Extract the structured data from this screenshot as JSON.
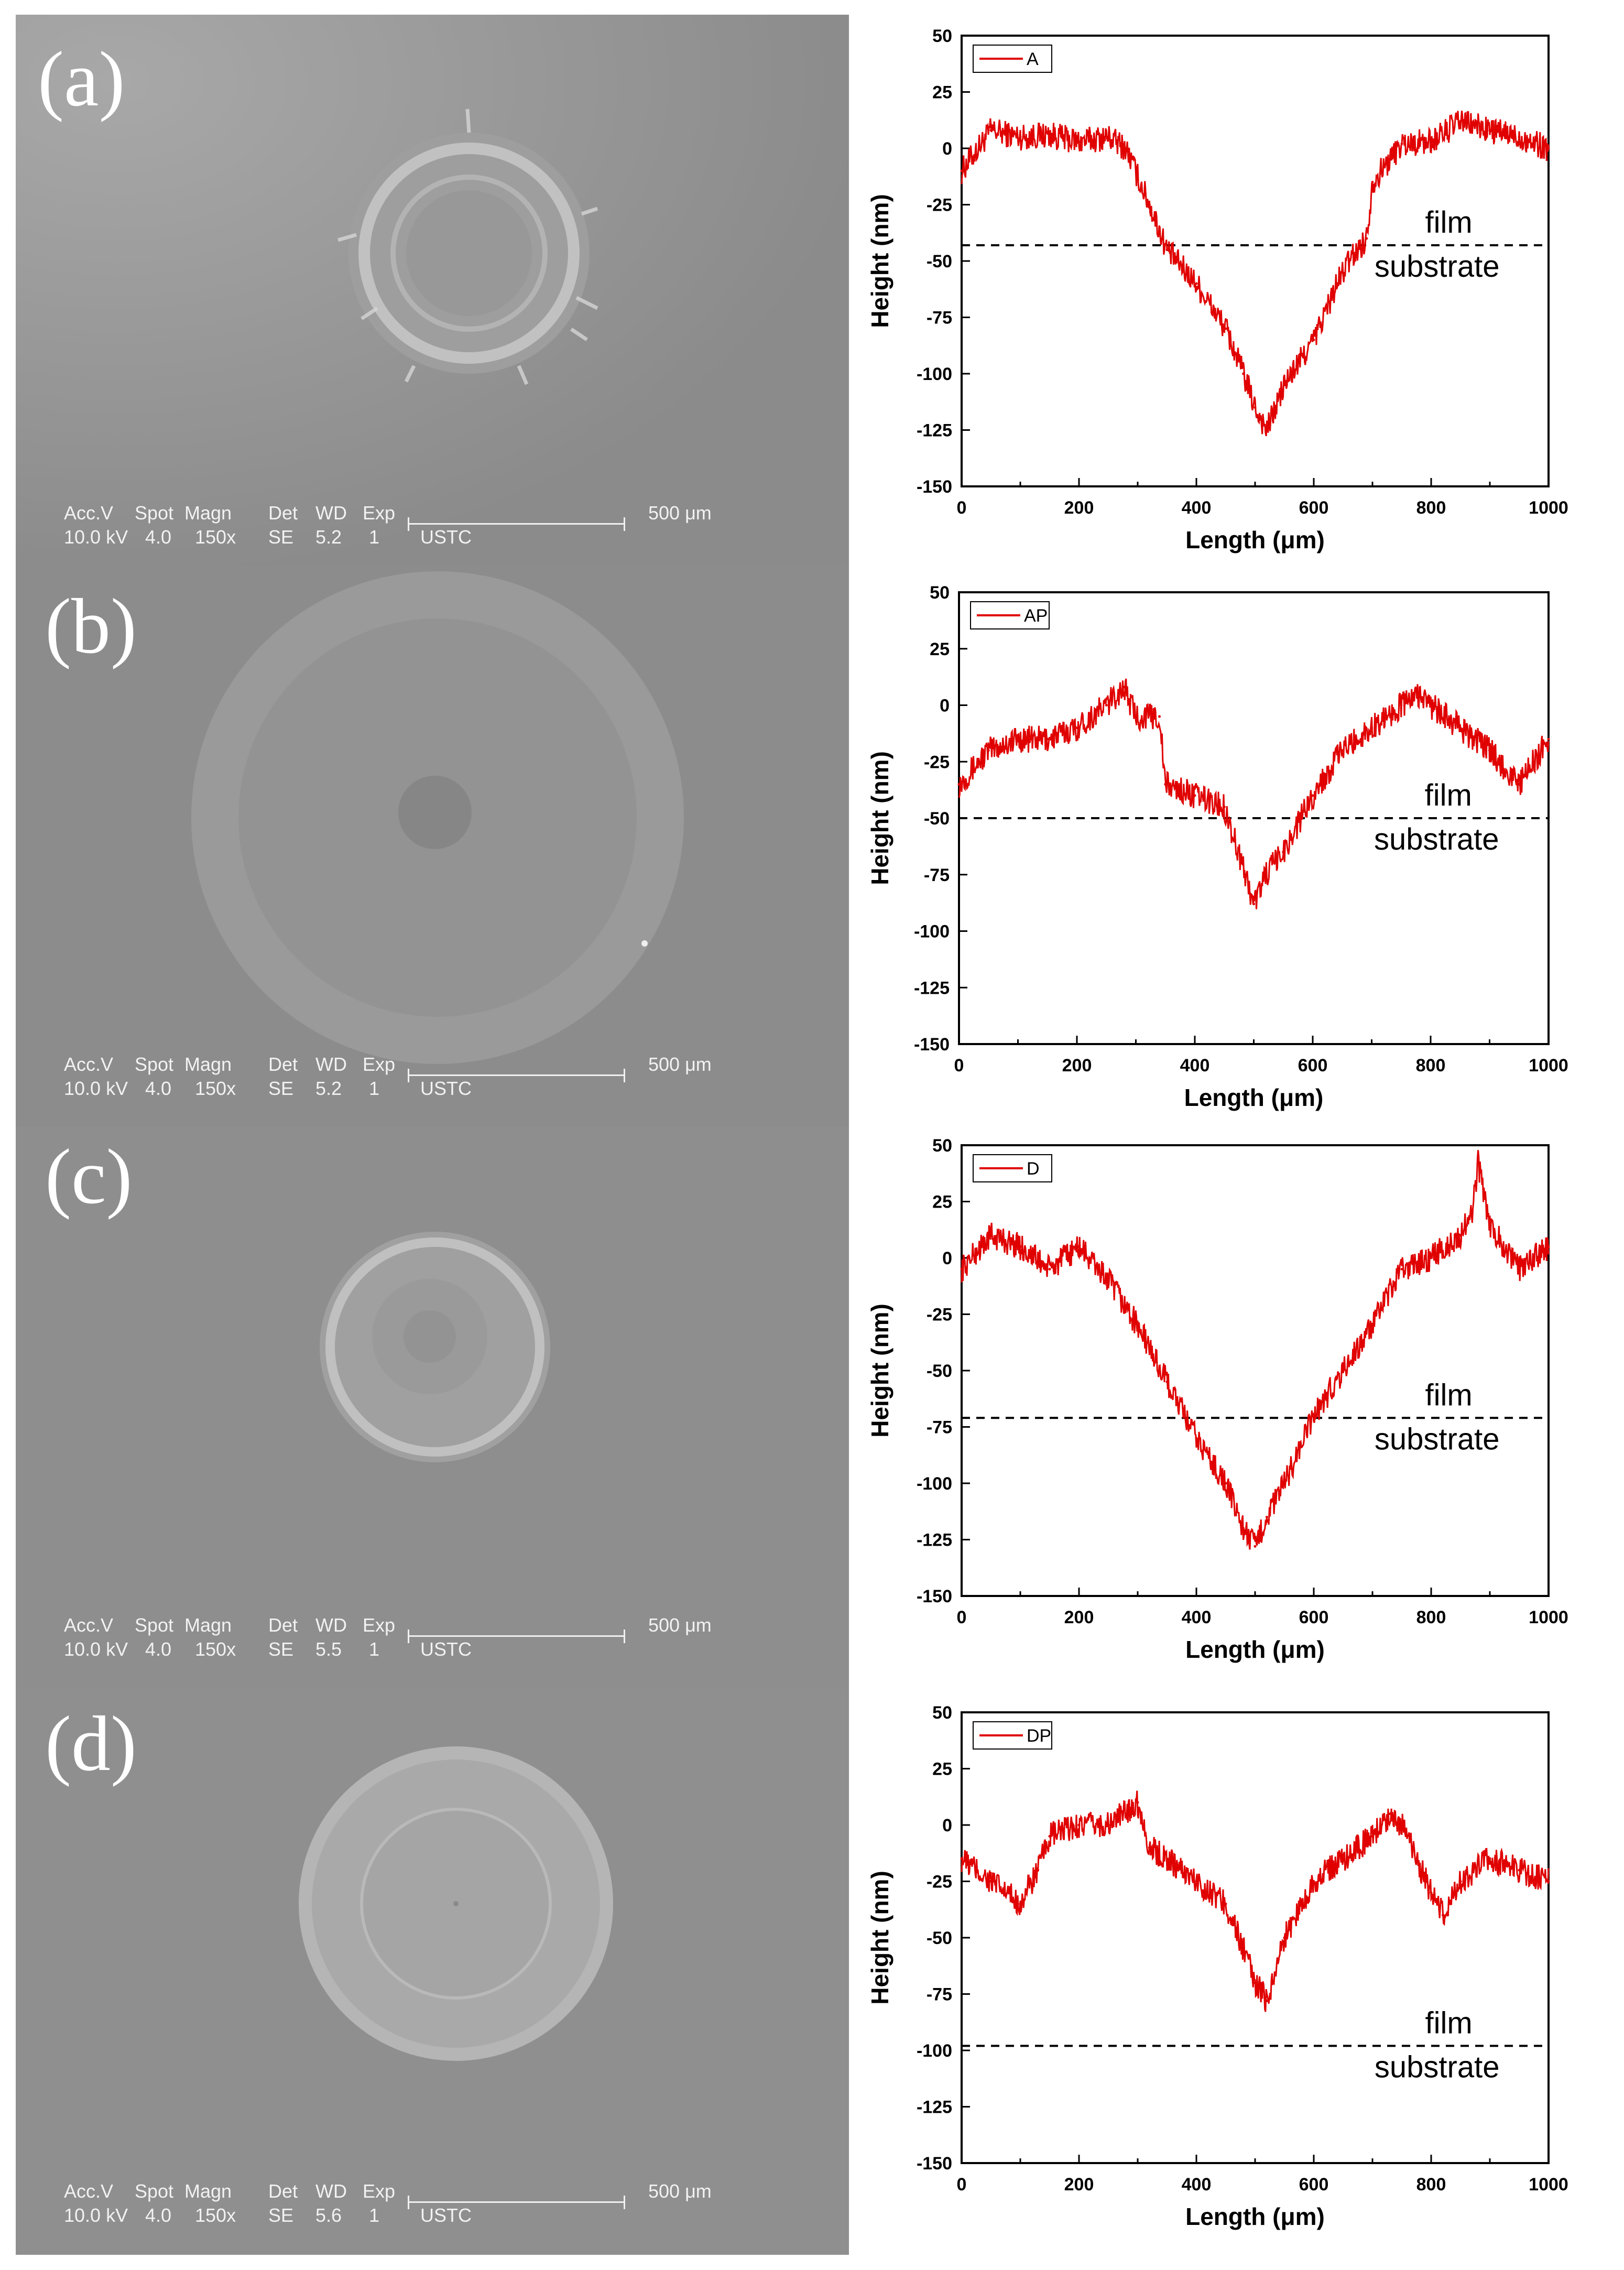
{
  "figure": {
    "panels": [
      {
        "label": "(a)",
        "sem_meta": {
          "accv": "Acc.V",
          "accv_val": "10.0 kV",
          "spot": "Spot",
          "spot_val": "4.0",
          "magn": "Magn",
          "magn_val": "150x",
          "det": "Det",
          "det_val": "SE",
          "wd": "WD",
          "wd_val": "5.2",
          "exp": "Exp",
          "exp_val": "1",
          "scale": "500 μm",
          "inst": "USTC"
        }
      },
      {
        "label": "(b)",
        "sem_meta": {
          "accv": "Acc.V",
          "accv_val": "10.0 kV",
          "spot": "Spot",
          "spot_val": "4.0",
          "magn": "Magn",
          "magn_val": "150x",
          "det": "Det",
          "det_val": "SE",
          "wd": "WD",
          "wd_val": "5.2",
          "exp": "Exp",
          "exp_val": "1",
          "scale": "500 μm",
          "inst": "USTC"
        }
      },
      {
        "label": "(c)",
        "sem_meta": {
          "accv": "Acc.V",
          "accv_val": "10.0 kV",
          "spot": "Spot",
          "spot_val": "4.0",
          "magn": "Magn",
          "magn_val": "150x",
          "det": "Det",
          "det_val": "SE",
          "wd": "WD",
          "wd_val": "5.5",
          "exp": "Exp",
          "exp_val": "1",
          "scale": "500 μm",
          "inst": "USTC"
        }
      },
      {
        "label": "(d)",
        "sem_meta": {
          "accv": "Acc.V",
          "accv_val": "10.0 kV",
          "spot": "Spot",
          "spot_val": "4.0",
          "magn": "Magn",
          "magn_val": "150x",
          "det": "Det",
          "det_val": "SE",
          "wd": "WD",
          "wd_val": "5.6",
          "exp": "Exp",
          "exp_val": "1",
          "scale": "500 μm",
          "inst": "USTC"
        }
      }
    ]
  },
  "colors": {
    "series": "#e00000",
    "dashed": "#000000",
    "sem_bg": "#8a8a8a"
  },
  "chart_data": [
    {
      "type": "line",
      "xlabel": "Length (μm)",
      "ylabel": "Height (nm)",
      "xlim": [
        0,
        1000
      ],
      "ylim": [
        -150,
        50
      ],
      "xticks": [
        "0",
        "200",
        "400",
        "600",
        "800",
        "1000"
      ],
      "yticks": [
        "50",
        "25",
        "0",
        "-25",
        "-50",
        "-75",
        "-100",
        "-125",
        "-150"
      ],
      "legend": "A",
      "legend_position": "top-left",
      "threshold": -43,
      "annotation_upper": "film",
      "annotation_lower": "substrate",
      "series": [
        {
          "name": "A",
          "x": [
            0,
            50,
            100,
            150,
            200,
            250,
            280,
            320,
            350,
            400,
            450,
            480,
            500,
            520,
            550,
            600,
            640,
            660,
            690,
            700,
            750,
            800,
            850,
            900,
            950,
            1000
          ],
          "y": [
            -10,
            8,
            5,
            6,
            3,
            5,
            0,
            -25,
            -45,
            -60,
            -80,
            -100,
            -115,
            -125,
            -105,
            -85,
            -60,
            -50,
            -40,
            -15,
            2,
            3,
            12,
            8,
            5,
            0
          ]
        }
      ]
    },
    {
      "type": "line",
      "xlabel": "Length (μm)",
      "ylabel": "Height (nm)",
      "xlim": [
        0,
        1000
      ],
      "ylim": [
        -150,
        50
      ],
      "xticks": [
        "0",
        "200",
        "400",
        "600",
        "800",
        "1000"
      ],
      "yticks": [
        "50",
        "25",
        "0",
        "-25",
        "-50",
        "-75",
        "-100",
        "-125",
        "-150"
      ],
      "legend": "AP",
      "legend_position": "top-left",
      "threshold": -50,
      "annotation_upper": "film",
      "annotation_lower": "substrate",
      "series": [
        {
          "name": "AP",
          "x": [
            0,
            50,
            100,
            150,
            200,
            250,
            280,
            300,
            340,
            350,
            400,
            450,
            480,
            500,
            520,
            550,
            600,
            650,
            700,
            750,
            780,
            800,
            850,
            900,
            950,
            1000
          ],
          "y": [
            -35,
            -20,
            -15,
            -15,
            -10,
            0,
            8,
            -5,
            -5,
            -35,
            -40,
            -45,
            -70,
            -88,
            -75,
            -65,
            -40,
            -20,
            -10,
            0,
            5,
            0,
            -10,
            -20,
            -35,
            -15
          ]
        }
      ]
    },
    {
      "type": "line",
      "xlabel": "Length (μm)",
      "ylabel": "Height (nm)",
      "xlim": [
        0,
        1000
      ],
      "ylim": [
        -150,
        50
      ],
      "xticks": [
        "0",
        "200",
        "400",
        "600",
        "800",
        "1000"
      ],
      "yticks": [
        "50",
        "25",
        "0",
        "-25",
        "-50",
        "-75",
        "-100",
        "-125",
        "-150"
      ],
      "legend": "D",
      "legend_position": "top-left",
      "threshold": -71,
      "annotation_upper": "film",
      "annotation_lower": "substrate",
      "series": [
        {
          "name": "D",
          "x": [
            0,
            50,
            100,
            150,
            200,
            250,
            300,
            350,
            400,
            450,
            480,
            500,
            520,
            550,
            600,
            650,
            700,
            750,
            800,
            850,
            870,
            880,
            900,
            950,
            1000
          ],
          "y": [
            -5,
            10,
            5,
            -5,
            5,
            -10,
            -30,
            -55,
            -80,
            -100,
            -120,
            -128,
            -115,
            -100,
            -70,
            -50,
            -30,
            -5,
            0,
            10,
            20,
            42,
            15,
            -5,
            5
          ]
        }
      ]
    },
    {
      "type": "line",
      "xlabel": "Length (μm)",
      "ylabel": "Height (nm)",
      "xlim": [
        0,
        1000
      ],
      "ylim": [
        -150,
        50
      ],
      "xticks": [
        "0",
        "200",
        "400",
        "600",
        "800",
        "1000"
      ],
      "yticks": [
        "50",
        "25",
        "0",
        "-25",
        "-50",
        "-75",
        "-100",
        "-125",
        "-150"
      ],
      "legend": "DP",
      "legend_position": "top-left",
      "threshold": -98,
      "annotation_upper": "film",
      "annotation_lower": "substrate",
      "series": [
        {
          "name": "DP",
          "x": [
            0,
            50,
            100,
            130,
            150,
            200,
            250,
            300,
            320,
            350,
            400,
            450,
            480,
            500,
            520,
            550,
            600,
            650,
            700,
            730,
            750,
            800,
            820,
            850,
            900,
            950,
            1000
          ],
          "y": [
            -15,
            -25,
            -35,
            -20,
            -5,
            0,
            0,
            10,
            -10,
            -15,
            -25,
            -35,
            -55,
            -70,
            -78,
            -50,
            -25,
            -15,
            -5,
            5,
            0,
            -30,
            -40,
            -25,
            -15,
            -20,
            -25
          ]
        }
      ]
    }
  ]
}
